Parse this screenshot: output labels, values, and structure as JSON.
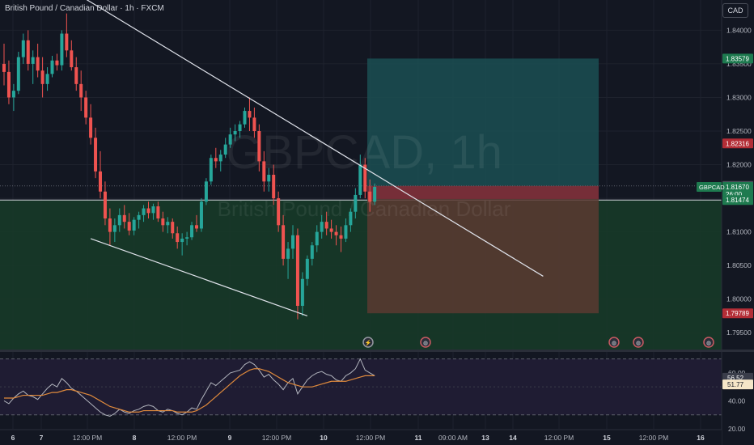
{
  "header": {
    "symbol_title": "British Pound / Canadian Dollar · 1h · FXCM",
    "currency_button": "CAD"
  },
  "watermark": {
    "ticker": "GBPCAD, 1h",
    "name": "British Pound / Canadian Dollar"
  },
  "colors": {
    "background": "#131722",
    "up": "#26a69a",
    "down": "#ef5350",
    "target_zone": "#1b4f52",
    "stop_zone": "#5a3a31",
    "entry_band": "#7a2d3a",
    "support_zone": "#173a28",
    "rsi_band": "#1f1c33",
    "rsi_line": "#b2b5be",
    "rsi_ma": "#e08a3c"
  },
  "chart_data": [
    {
      "type": "candlestick",
      "title": "British Pound / Canadian Dollar · 1h · FXCM",
      "symbol": "GBPCAD",
      "interval": "1h",
      "ylim": [
        1.7925,
        1.8445
      ],
      "yticks": [
        "1.84000",
        "1.83500",
        "1.83000",
        "1.82500",
        "1.82000",
        "1.81500",
        "1.81000",
        "1.80500",
        "1.80000",
        "1.79500"
      ],
      "xticks": [
        "6",
        "7",
        "12:00 PM",
        "8",
        "12:00 PM",
        "9",
        "12:00 PM",
        "10",
        "12:00 PM",
        "11",
        "09:00 AM",
        "13",
        "14",
        "12:00 PM",
        "15",
        "12:00 PM",
        "16"
      ],
      "price_labels": [
        {
          "text": "1.83579",
          "value": 1.83579,
          "color": "#1e7a4f"
        },
        {
          "text": "1.82316",
          "value": 1.82316,
          "color": "#b32d36"
        },
        {
          "text": "1.81684",
          "value": 1.81684,
          "color": "#4a4e59"
        },
        {
          "text": "1.81670",
          "value": 1.8167,
          "color": "#1e7a4f"
        },
        {
          "text": "26:00",
          "value": 1.8156,
          "color": "#1e7a4f"
        },
        {
          "text": "1.81474",
          "value": 1.81474,
          "color": "#1e7a4f"
        },
        {
          "text": "1.79789",
          "value": 1.79789,
          "color": "#b32d36"
        }
      ],
      "last_price_tag": "GBPCAD",
      "position": {
        "entry": 1.81684,
        "target": 1.83579,
        "stop": 1.79789
      },
      "support_zone": [
        1.7935,
        1.81474
      ],
      "candles": [
        [
          1.835,
          1.838,
          1.8318,
          1.8338
        ],
        [
          1.8338,
          1.8355,
          1.829,
          1.83
        ],
        [
          1.83,
          1.832,
          1.828,
          1.831
        ],
        [
          1.831,
          1.8368,
          1.8305,
          1.836
        ],
        [
          1.836,
          1.8395,
          1.835,
          1.8385
        ],
        [
          1.8385,
          1.84,
          1.834,
          1.835
        ],
        [
          1.835,
          1.837,
          1.832,
          1.836
        ],
        [
          1.836,
          1.838,
          1.833,
          1.834
        ],
        [
          1.834,
          1.836,
          1.83,
          1.832
        ],
        [
          1.832,
          1.8345,
          1.831,
          1.8335
        ],
        [
          1.8335,
          1.8362,
          1.833,
          1.8355
        ],
        [
          1.8355,
          1.8365,
          1.834,
          1.8348
        ],
        [
          1.8348,
          1.84,
          1.834,
          1.8395
        ],
        [
          1.8395,
          1.8425,
          1.836,
          1.837
        ],
        [
          1.837,
          1.8385,
          1.834,
          1.8345
        ],
        [
          1.8345,
          1.836,
          1.831,
          1.832
        ],
        [
          1.832,
          1.834,
          1.828,
          1.83
        ],
        [
          1.83,
          1.831,
          1.826,
          1.827
        ],
        [
          1.827,
          1.829,
          1.823,
          1.824
        ],
        [
          1.824,
          1.8255,
          1.818,
          1.819
        ],
        [
          1.819,
          1.822,
          1.815,
          1.816
        ],
        [
          1.816,
          1.8175,
          1.811,
          1.812
        ],
        [
          1.812,
          1.8135,
          1.808,
          1.81
        ],
        [
          1.81,
          1.812,
          1.8085,
          1.811
        ],
        [
          1.811,
          1.8135,
          1.81,
          1.8125
        ],
        [
          1.8125,
          1.814,
          1.8105,
          1.8115
        ],
        [
          1.8115,
          1.8128,
          1.8095,
          1.8102
        ],
        [
          1.8102,
          1.8122,
          1.8095,
          1.8118
        ],
        [
          1.8118,
          1.813,
          1.8105,
          1.8125
        ],
        [
          1.8125,
          1.814,
          1.8115,
          1.8135
        ],
        [
          1.8135,
          1.8145,
          1.812,
          1.8128
        ],
        [
          1.8128,
          1.8142,
          1.8118,
          1.8138
        ],
        [
          1.8138,
          1.8145,
          1.8115,
          1.812
        ],
        [
          1.812,
          1.813,
          1.81,
          1.811
        ],
        [
          1.811,
          1.8122,
          1.8098,
          1.8115
        ],
        [
          1.8115,
          1.812,
          1.809,
          1.8098
        ],
        [
          1.8098,
          1.8108,
          1.8075,
          1.8085
        ],
        [
          1.8085,
          1.8098,
          1.8065,
          1.809
        ],
        [
          1.809,
          1.81,
          1.808,
          1.8092
        ],
        [
          1.8092,
          1.8115,
          1.8088,
          1.811
        ],
        [
          1.811,
          1.8125,
          1.81,
          1.8105
        ],
        [
          1.8105,
          1.815,
          1.81,
          1.8145
        ],
        [
          1.8145,
          1.818,
          1.814,
          1.8175
        ],
        [
          1.8175,
          1.8215,
          1.817,
          1.821
        ],
        [
          1.821,
          1.8225,
          1.8195,
          1.8205
        ],
        [
          1.8205,
          1.8222,
          1.819,
          1.8215
        ],
        [
          1.8215,
          1.824,
          1.821,
          1.823
        ],
        [
          1.823,
          1.8255,
          1.8225,
          1.8245
        ],
        [
          1.8245,
          1.826,
          1.8235,
          1.825
        ],
        [
          1.825,
          1.8265,
          1.824,
          1.826
        ],
        [
          1.826,
          1.8285,
          1.8255,
          1.828
        ],
        [
          1.828,
          1.83,
          1.825,
          1.827
        ],
        [
          1.827,
          1.8285,
          1.824,
          1.825
        ],
        [
          1.825,
          1.826,
          1.819,
          1.8205
        ],
        [
          1.8205,
          1.822,
          1.816,
          1.8175
        ],
        [
          1.8175,
          1.8195,
          1.816,
          1.8185
        ],
        [
          1.8185,
          1.82,
          1.814,
          1.815
        ],
        [
          1.815,
          1.816,
          1.81,
          1.811
        ],
        [
          1.811,
          1.8125,
          1.805,
          1.806
        ],
        [
          1.806,
          1.8085,
          1.803,
          1.8075
        ],
        [
          1.8075,
          1.811,
          1.806,
          1.8095
        ],
        [
          1.8095,
          1.8105,
          1.797,
          1.799
        ],
        [
          1.799,
          1.804,
          1.7975,
          1.803
        ],
        [
          1.803,
          1.8065,
          1.802,
          1.806
        ],
        [
          1.806,
          1.8085,
          1.805,
          1.808
        ],
        [
          1.808,
          1.811,
          1.807,
          1.81
        ],
        [
          1.81,
          1.8125,
          1.809,
          1.8115
        ],
        [
          1.8115,
          1.813,
          1.8095,
          1.8105
        ],
        [
          1.8105,
          1.8118,
          1.809,
          1.81
        ],
        [
          1.81,
          1.811,
          1.808,
          1.8095
        ],
        [
          1.8095,
          1.8108,
          1.807,
          1.809
        ],
        [
          1.809,
          1.812,
          1.8085,
          1.811
        ],
        [
          1.811,
          1.8135,
          1.81,
          1.813
        ],
        [
          1.813,
          1.8165,
          1.812,
          1.8155
        ],
        [
          1.8155,
          1.8215,
          1.815,
          1.82
        ],
        [
          1.82,
          1.821,
          1.815,
          1.816
        ],
        [
          1.816,
          1.8178,
          1.813,
          1.8145
        ],
        [
          1.8145,
          1.8172,
          1.814,
          1.8167
        ]
      ],
      "trendlines": [
        {
          "from": [
            0,
            1.852
          ],
          "to": [
            112,
            1.8034
          ]
        },
        {
          "from": [
            18,
            1.809
          ],
          "to": [
            63,
            1.7975
          ]
        }
      ]
    },
    {
      "type": "line",
      "indicator": "RSI",
      "ylim": [
        20,
        75
      ],
      "yticks": [
        "60.00",
        "40.00",
        "20.00"
      ],
      "bands": [
        30,
        70
      ],
      "labels": [
        {
          "text": "56.52",
          "value": 56.52,
          "color": "#3a3d4a"
        },
        {
          "text": "51.77",
          "value": 51.77,
          "color": "#f5e6c8"
        }
      ],
      "rsi": [
        40,
        38,
        42,
        45,
        47,
        44,
        43,
        41,
        45,
        49,
        52,
        50,
        56,
        53,
        49,
        47,
        44,
        41,
        38,
        35,
        32,
        30,
        29,
        31,
        34,
        32,
        31,
        33,
        34,
        36,
        37,
        36,
        33,
        32,
        34,
        33,
        31,
        30,
        32,
        35,
        34,
        41,
        47,
        53,
        51,
        54,
        57,
        60,
        61,
        62,
        66,
        68,
        66,
        62,
        57,
        59,
        55,
        52,
        48,
        53,
        56,
        45,
        50,
        55,
        58,
        60,
        61,
        59,
        58,
        55,
        54,
        58,
        60,
        63,
        70,
        62,
        60,
        58
      ],
      "ma": [
        42,
        42,
        42,
        43,
        44,
        44,
        44,
        44,
        44,
        45,
        46,
        46,
        47,
        48,
        48,
        47,
        46,
        45,
        44,
        42,
        40,
        38,
        36,
        35,
        34,
        33,
        32,
        32,
        32,
        33,
        33,
        33,
        33,
        33,
        33,
        33,
        32,
        32,
        32,
        32,
        33,
        35,
        37,
        40,
        43,
        46,
        49,
        52,
        55,
        58,
        60,
        62,
        63,
        63,
        62,
        61,
        59,
        57,
        55,
        53,
        52,
        51,
        50,
        50,
        50,
        51,
        52,
        53,
        54,
        54,
        54,
        54,
        55,
        56,
        57,
        58,
        58,
        58
      ]
    }
  ]
}
